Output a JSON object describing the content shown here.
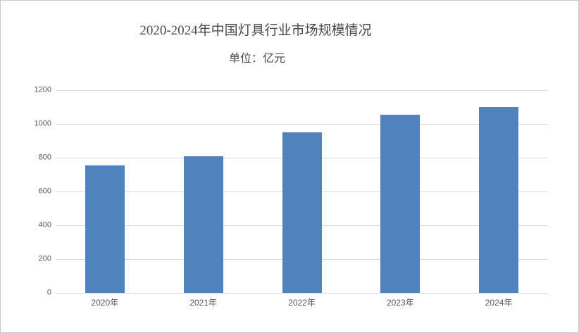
{
  "chart_data": {
    "type": "bar",
    "title": "2020-2024年中国灯具行业市场规模情况",
    "subtitle": "单位：亿元",
    "categories": [
      "2020年",
      "2021年",
      "2022年",
      "2023年",
      "2024年"
    ],
    "values": [
      755,
      810,
      950,
      1055,
      1100
    ],
    "xlabel": "",
    "ylabel": "",
    "ylim": [
      0,
      1200
    ],
    "yticks": [
      0,
      200,
      400,
      600,
      800,
      1000,
      1200
    ],
    "grid": true,
    "legend_position": "none",
    "bar_color": "#5082BE",
    "gridline_color": "#D9D9D9",
    "axis_label_color": "#595959",
    "title_color": "#4A4A4A"
  }
}
